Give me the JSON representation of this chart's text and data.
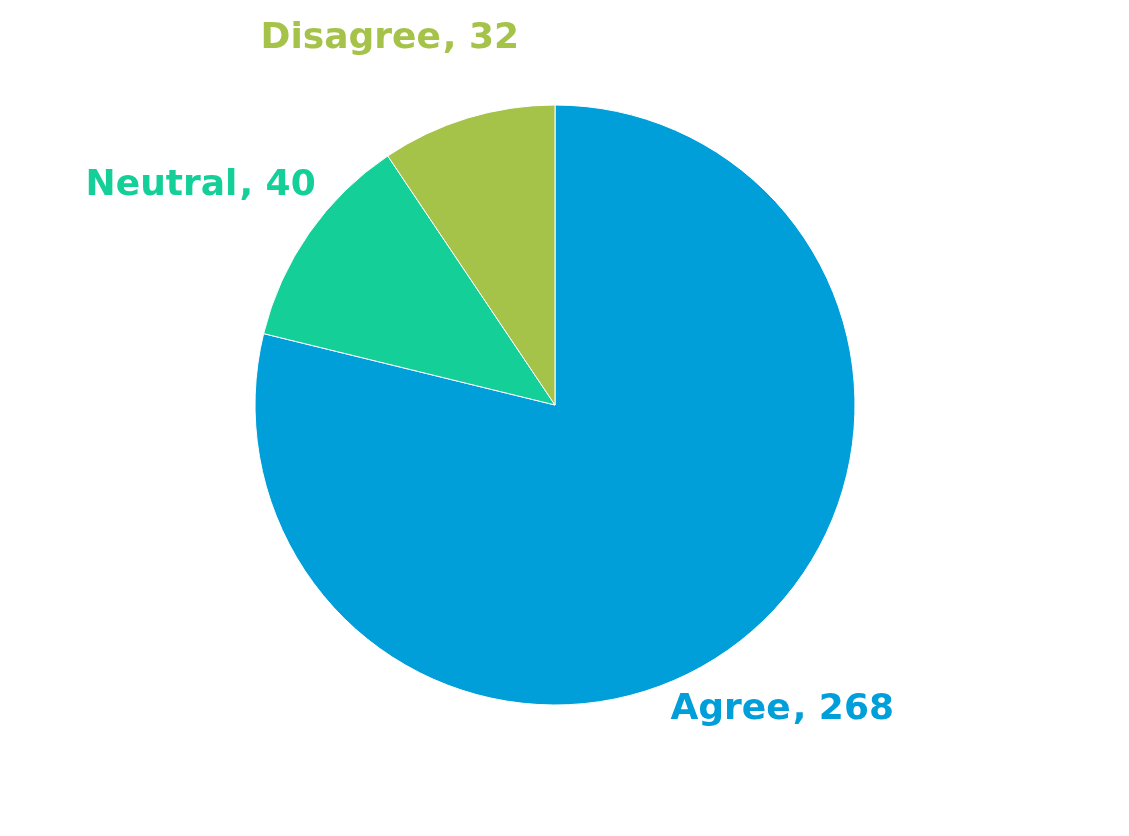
{
  "chart_data": {
    "type": "pie",
    "categories": [
      "Agree",
      "Neutral",
      "Disagree"
    ],
    "values": [
      268,
      40,
      32
    ],
    "colors": [
      "#009fd9",
      "#14cf97",
      "#a5c249"
    ],
    "value_labels": [
      ", 268",
      ", 40",
      ", 32"
    ],
    "legend": false
  }
}
